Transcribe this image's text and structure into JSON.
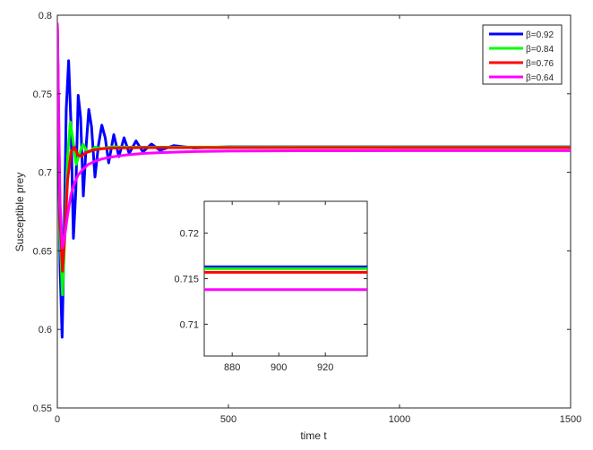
{
  "chart_data": [
    {
      "type": "line",
      "xlabel": "time t",
      "ylabel": "Susceptible prey",
      "xlim": [
        0,
        1500
      ],
      "ylim": [
        0.55,
        0.8
      ],
      "xticks": [
        0,
        500,
        1000,
        1500
      ],
      "yticks": [
        0.55,
        0.6,
        0.65,
        0.7,
        0.75,
        0.8
      ],
      "xtick_labels": [
        "0",
        "500",
        "1000",
        "1500"
      ],
      "ytick_labels": [
        "0.55",
        "0.6",
        "0.65",
        "0.7",
        "0.75",
        "0.8"
      ],
      "grid": false,
      "legend_position": "top-right",
      "series": [
        {
          "name": "β=0.92",
          "color": "#0000ff",
          "x": [
            0,
            8,
            14,
            20,
            26,
            33,
            40,
            47,
            54,
            61,
            68,
            76,
            84,
            92,
            100,
            110,
            120,
            130,
            140,
            150,
            165,
            180,
            195,
            210,
            230,
            250,
            275,
            300,
            340,
            400,
            500,
            700,
            1000,
            1500
          ],
          "y": [
            0.795,
            0.64,
            0.595,
            0.66,
            0.74,
            0.771,
            0.73,
            0.658,
            0.688,
            0.749,
            0.735,
            0.685,
            0.716,
            0.74,
            0.729,
            0.697,
            0.717,
            0.73,
            0.722,
            0.706,
            0.724,
            0.71,
            0.722,
            0.712,
            0.72,
            0.713,
            0.718,
            0.714,
            0.717,
            0.7155,
            0.7162,
            0.7162,
            0.7162,
            0.7162
          ]
        },
        {
          "name": "β=0.84",
          "color": "#00ff00",
          "x": [
            0,
            8,
            15,
            22,
            30,
            38,
            46,
            55,
            65,
            75,
            85,
            95,
            110,
            130,
            160,
            200,
            300,
            500,
            1000,
            1500
          ],
          "y": [
            0.795,
            0.66,
            0.622,
            0.66,
            0.71,
            0.732,
            0.72,
            0.705,
            0.712,
            0.718,
            0.714,
            0.713,
            0.716,
            0.715,
            0.7162,
            0.716,
            0.716,
            0.7161,
            0.7161,
            0.7161
          ]
        },
        {
          "name": "β=0.76",
          "color": "#ff0000",
          "x": [
            0,
            8,
            15,
            22,
            30,
            40,
            50,
            60,
            70,
            80,
            100,
            130,
            170,
            250,
            400,
            700,
            1000,
            1500
          ],
          "y": [
            0.795,
            0.67,
            0.637,
            0.66,
            0.695,
            0.713,
            0.716,
            0.711,
            0.71,
            0.712,
            0.714,
            0.715,
            0.7155,
            0.7157,
            0.7157,
            0.7157,
            0.7157,
            0.7157
          ]
        },
        {
          "name": "β=0.64",
          "color": "#ff00ff",
          "x": [
            0,
            8,
            15,
            22,
            30,
            40,
            50,
            60,
            75,
            90,
            110,
            130,
            160,
            200,
            250,
            300,
            400,
            500,
            700,
            1000,
            1500
          ],
          "y": [
            0.795,
            0.68,
            0.652,
            0.66,
            0.673,
            0.686,
            0.693,
            0.698,
            0.702,
            0.705,
            0.707,
            0.7085,
            0.7098,
            0.711,
            0.712,
            0.7125,
            0.7132,
            0.7135,
            0.7137,
            0.7138,
            0.7138
          ]
        }
      ]
    },
    {
      "type": "line",
      "xlim": [
        868,
        938
      ],
      "ylim": [
        0.7065,
        0.7235
      ],
      "xticks": [
        880,
        900,
        920
      ],
      "yticks": [
        0.71,
        0.715,
        0.72
      ],
      "xtick_labels": [
        "880",
        "900",
        "920"
      ],
      "ytick_labels": [
        "0.71",
        "0.715",
        "0.72"
      ],
      "grid": false,
      "series": [
        {
          "name": "β=0.92",
          "color": "#0000ff",
          "x": [
            868,
            938
          ],
          "y": [
            0.7163,
            0.7163
          ]
        },
        {
          "name": "β=0.84",
          "color": "#00ff00",
          "x": [
            868,
            938
          ],
          "y": [
            0.7161,
            0.7161
          ]
        },
        {
          "name": "β=0.76",
          "color": "#ff0000",
          "x": [
            868,
            938
          ],
          "y": [
            0.7157,
            0.7157
          ]
        },
        {
          "name": "β=0.64",
          "color": "#ff00ff",
          "x": [
            868,
            938
          ],
          "y": [
            0.7138,
            0.7138
          ]
        }
      ]
    }
  ]
}
